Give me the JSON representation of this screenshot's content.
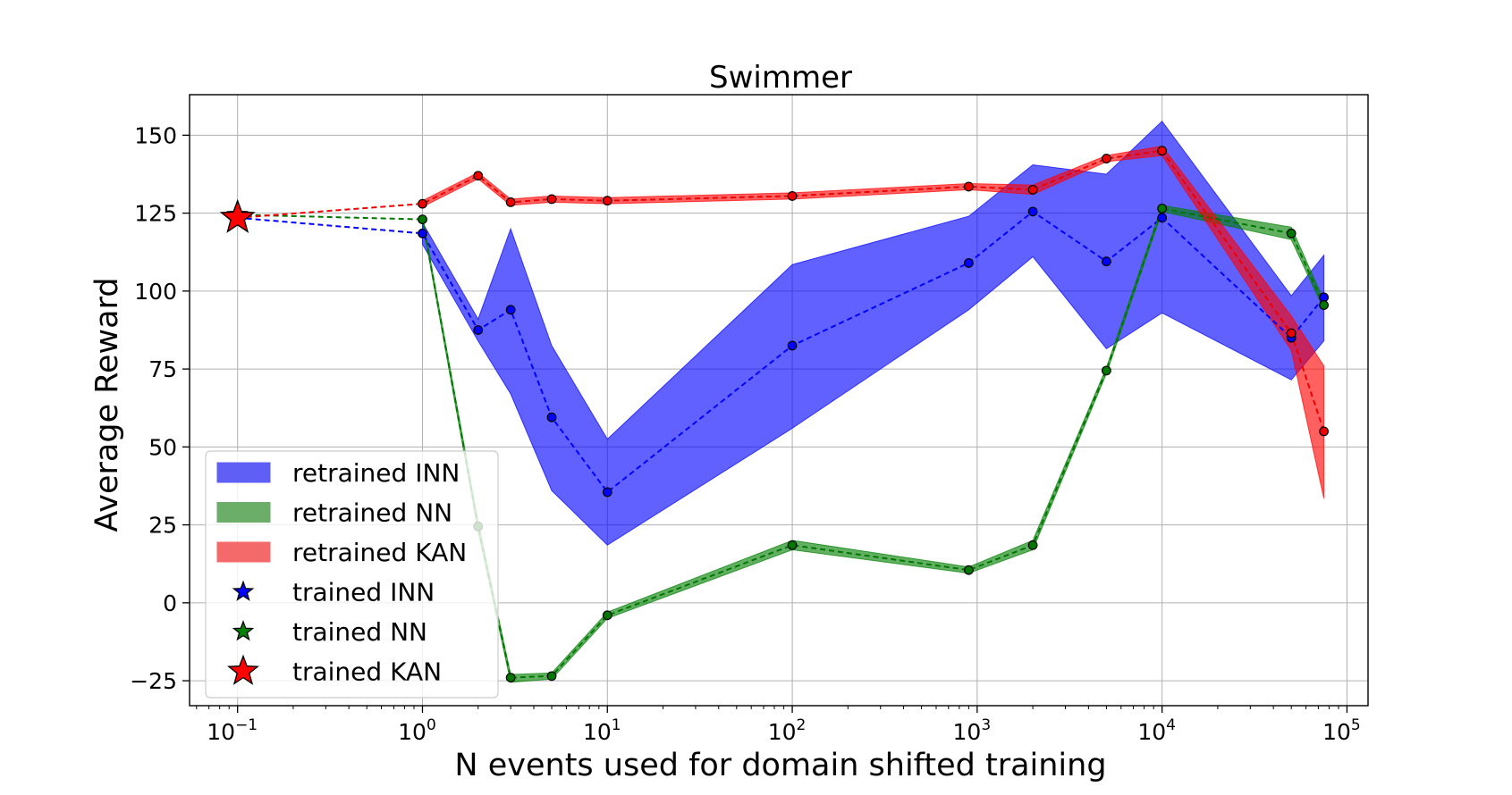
{
  "chart_data": {
    "type": "line",
    "title": "Swimmer",
    "xlabel": "N events used for domain shifted training",
    "ylabel": "Average Reward",
    "x_scale": "log",
    "xlim": [
      0.055,
      130000
    ],
    "ylim": [
      -33,
      163
    ],
    "x_ticks": [
      {
        "value": 0.1,
        "base": "10",
        "exp": "−1"
      },
      {
        "value": 1,
        "base": "10",
        "exp": "0"
      },
      {
        "value": 10,
        "base": "10",
        "exp": "1"
      },
      {
        "value": 100,
        "base": "10",
        "exp": "2"
      },
      {
        "value": 1000,
        "base": "10",
        "exp": "3"
      },
      {
        "value": 10000,
        "base": "10",
        "exp": "4"
      },
      {
        "value": 100000,
        "base": "10",
        "exp": "5"
      }
    ],
    "y_ticks": [
      {
        "value": -25,
        "label": "−25"
      },
      {
        "value": 0,
        "label": "0"
      },
      {
        "value": 25,
        "label": "25"
      },
      {
        "value": 50,
        "label": "50"
      },
      {
        "value": 75,
        "label": "75"
      },
      {
        "value": 100,
        "label": "100"
      },
      {
        "value": 125,
        "label": "125"
      },
      {
        "value": 150,
        "label": "150"
      }
    ],
    "grid": true,
    "legend_position": "lower-left",
    "series": [
      {
        "name": "retrained INN",
        "marker_name": "trained INN",
        "color": "#0000ff",
        "band_color": "#0000ff",
        "band_opacity": 0.62,
        "band_legend_color": "#5f5ff5",
        "trained_point": {
          "x": 0.1,
          "y": 123.5,
          "star_size": "small"
        },
        "x": [
          1,
          2,
          3,
          5,
          10,
          100,
          900,
          2000,
          5000,
          10000,
          50000,
          75000
        ],
        "y": [
          118.5,
          87.5,
          94,
          59.5,
          35.5,
          82.5,
          109,
          125.5,
          109.5,
          123.5,
          85,
          98
        ],
        "lower": [
          115,
          84,
          67,
          36,
          18.5,
          56,
          94,
          111,
          81.5,
          93,
          71.5,
          84
        ],
        "upper": [
          122,
          91,
          120,
          82.5,
          52.5,
          108.5,
          124,
          140.5,
          137.5,
          154.5,
          98.5,
          111.5
        ]
      },
      {
        "name": "retrained NN",
        "marker_name": "trained NN",
        "color": "#007700",
        "band_color": "#008000",
        "band_opacity": 0.62,
        "band_legend_color": "#6aae6a",
        "trained_point": {
          "x": 0.1,
          "y": 124.5,
          "star_size": "small"
        },
        "x": [
          1,
          2,
          3,
          5,
          10,
          100,
          900,
          2000,
          5000,
          10000,
          50000,
          75000
        ],
        "y": [
          123,
          24.5,
          -24,
          -23.5,
          -4,
          18.5,
          10.5,
          18.5,
          74.5,
          126.5,
          118.5,
          95.5
        ],
        "lower": [
          122,
          23,
          -25.5,
          -24.5,
          -5,
          17,
          9.5,
          17,
          73.5,
          125.5,
          116.5,
          94
        ],
        "upper": [
          124,
          26,
          -23,
          -22.5,
          -3,
          20,
          11.5,
          20,
          75.5,
          127.5,
          120.5,
          97
        ]
      },
      {
        "name": "retrained KAN",
        "marker_name": "trained KAN",
        "color": "#ee0000",
        "band_color": "#ff0000",
        "band_opacity": 0.62,
        "band_legend_color": "#f46a6a",
        "trained_point": {
          "x": 0.1,
          "y": 123.5,
          "star_size": "large"
        },
        "x": [
          1,
          2,
          3,
          5,
          10,
          100,
          900,
          2000,
          5000,
          10000,
          50000,
          75000
        ],
        "y": [
          128,
          137,
          128.5,
          129.5,
          129,
          130.5,
          133.5,
          132.5,
          142.5,
          145,
          86.5,
          55
        ],
        "lower": [
          127,
          136,
          127.5,
          128.5,
          128,
          129.5,
          132.5,
          131,
          141.5,
          143.5,
          81,
          33.5
        ],
        "upper": [
          129,
          138,
          129.5,
          130.5,
          130,
          131.5,
          134.5,
          134,
          143.5,
          146.5,
          92,
          76
        ]
      }
    ]
  }
}
